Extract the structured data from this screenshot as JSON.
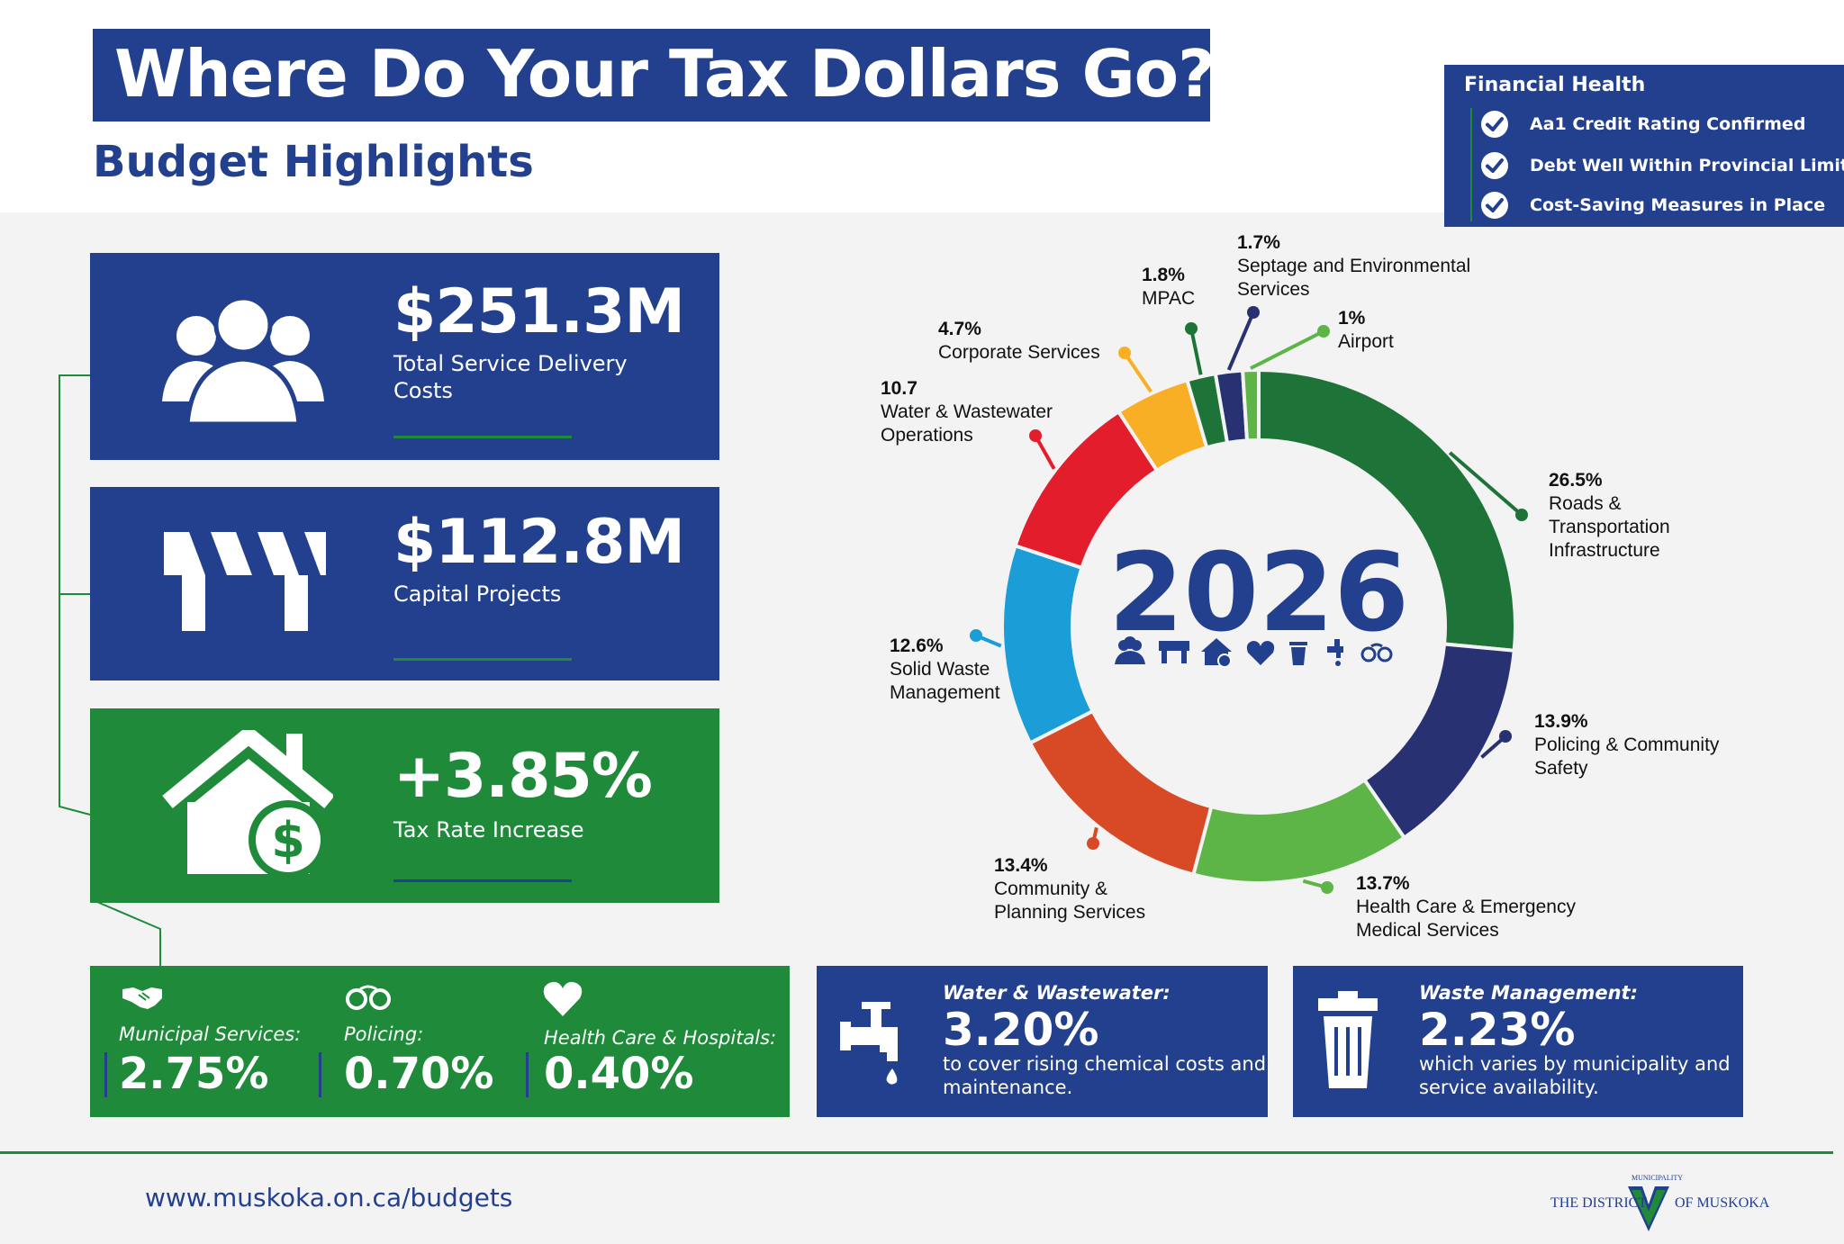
{
  "header": {
    "title": "Where Do Your Tax Dollars Go?",
    "subtitle": "Budget Highlights"
  },
  "financial_health": {
    "title": "Financial Health",
    "items": [
      "Aa1 Credit Rating Confirmed",
      "Debt Well Within Provincial Limits",
      "Cost-Saving Measures in Place"
    ]
  },
  "stats": {
    "service_delivery": {
      "value": "$251.3M",
      "label": "Total Service Delivery Costs"
    },
    "capital": {
      "value": "$112.8M",
      "label": "Capital Projects"
    },
    "tax_rate": {
      "value": "+3.85%",
      "label": "Tax Rate Increase"
    }
  },
  "breakdown": {
    "municipal": {
      "label": "Municipal Services:",
      "value": "2.75%"
    },
    "policing": {
      "label": "Policing:",
      "value": "0.70%"
    },
    "health": {
      "label": "Health Care & Hospitals:",
      "value": "0.40%"
    }
  },
  "water": {
    "label": "Water & Wastewater:",
    "value": "3.20%",
    "note": "to cover rising chemical costs and maintenance."
  },
  "waste": {
    "label": "Waste Management:",
    "value": "2.23%",
    "note": "which varies by municipality and service availability."
  },
  "footer": {
    "url": "www.muskoka.on.ca/budgets",
    "logo_left": "THE DISTRICT",
    "logo_top": "MUNICIPALITY",
    "logo_right": "OF MUSKOKA"
  },
  "colors": {
    "navy": "#23408e",
    "green": "#1e8a3a",
    "dark_green": "#1e7339",
    "dark_navy": "#283171",
    "light_green": "#5cb546",
    "orange_red": "#d84a25",
    "blue": "#1b9ed8",
    "red": "#e31d2c",
    "yellow": "#f8af26"
  },
  "chart_data": {
    "type": "donut",
    "center_label": "2026",
    "start": "12 o'clock",
    "direction": "clockwise",
    "series": [
      {
        "pct_label": "26.5%",
        "name": "Roads & Transportation Infrastructure",
        "value": 26.5,
        "color": "#1e7339"
      },
      {
        "pct_label": "13.9%",
        "name": "Policing & Community Safety",
        "value": 13.9,
        "color": "#283171"
      },
      {
        "pct_label": "13.7%",
        "name": "Health Care & Emergency Medical Services",
        "value": 13.7,
        "color": "#5cb546"
      },
      {
        "pct_label": "13.4%",
        "name": "Community & Planning Services",
        "value": 13.4,
        "color": "#d84a25"
      },
      {
        "pct_label": "12.6%",
        "name": "Solid Waste Management",
        "value": 12.6,
        "color": "#1b9ed8"
      },
      {
        "pct_label": "10.7",
        "name": "Water & Wastewater Operations",
        "value": 10.7,
        "color": "#e31d2c"
      },
      {
        "pct_label": "4.7%",
        "name": "Corporate Services",
        "value": 4.7,
        "color": "#f8af26"
      },
      {
        "pct_label": "1.8%",
        "name": "MPAC",
        "value": 1.8,
        "color": "#1e7339"
      },
      {
        "pct_label": "1.7%",
        "name": "Septage and Environmental Services",
        "value": 1.7,
        "color": "#283171"
      },
      {
        "pct_label": "1%",
        "name": "Airport",
        "value": 1,
        "color": "#5cb546"
      }
    ]
  }
}
